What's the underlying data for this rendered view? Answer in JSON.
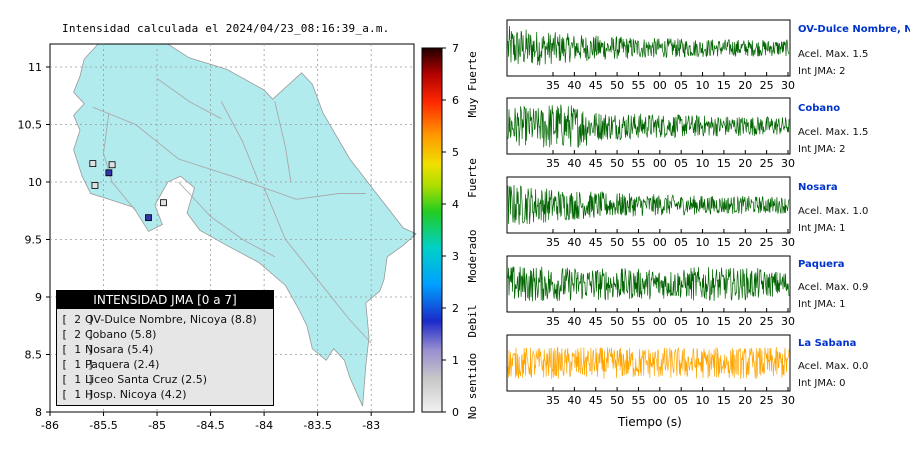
{
  "page_title": "Intensidad calculada el 2024/04/23_08:16:39_a.m.",
  "colors": {
    "land": "#b2ebee",
    "sea": "#ffffff",
    "roads": "#a9a9a9",
    "grid": "#9a9a9a",
    "legend_bg": "#e6e6e6",
    "legend_head": "#000000",
    "normal_wave": "#006400",
    "low_wave": "#ffa500",
    "station_label": "#0033cc"
  },
  "chart_data": [
    {
      "type": "map",
      "xlim": [
        -86,
        -82.6
      ],
      "ylim": [
        8,
        11.2
      ],
      "x_ticks": [
        "-86",
        "-85.5",
        "-85",
        "-84.5",
        "-84",
        "-83.5",
        "-83"
      ],
      "x_tick_values": [
        -86,
        -85.5,
        -85,
        -84.5,
        -84,
        -83.5,
        -83
      ],
      "y_ticks": [
        "8",
        "8.5",
        "9",
        "9.5",
        "10",
        "10.5",
        "11"
      ],
      "y_tick_values": [
        8,
        8.5,
        9,
        9.5,
        10,
        10.5,
        11
      ],
      "grid": true,
      "stations": [
        {
          "name": "OV-Dulce Nombre, Nicoya",
          "lon": -85.45,
          "lat": 10.08,
          "intensity": 2,
          "color": "#3333aa"
        },
        {
          "name": "Cobano",
          "lon": -85.08,
          "lat": 9.69,
          "intensity": 2,
          "color": "#3333aa"
        },
        {
          "name": "Nosara",
          "lon": -85.6,
          "lat": 10.16,
          "intensity": 1,
          "color": "#e0e0e0"
        },
        {
          "name": "Paquera",
          "lon": -84.94,
          "lat": 9.82,
          "intensity": 1,
          "color": "#e0e0e0"
        },
        {
          "name": "Liceo Santa Cruz",
          "lon": -85.58,
          "lat": 9.97,
          "intensity": 1,
          "color": "#e0e0e0"
        },
        {
          "name": "Hosp. Nicoya",
          "lon": -85.42,
          "lat": 10.15,
          "intensity": 1,
          "color": "#e0e0e0"
        }
      ]
    },
    {
      "type": "colorbar",
      "range": [
        0,
        7
      ],
      "ticks": [
        "0",
        "1",
        "2",
        "3",
        "4",
        "5",
        "6",
        "7"
      ],
      "category_labels": [
        "No sentido",
        "Debil",
        "Moderado",
        "Fuerte",
        "Muy Fuerte"
      ]
    },
    {
      "type": "line",
      "xlabel": "Tiempo (s)",
      "x_ticks": [
        "35",
        "40",
        "45",
        "50",
        "55",
        "00",
        "05",
        "10",
        "15",
        "20",
        "25",
        "30"
      ],
      "series": [
        {
          "name": "OV-Dulce Nombre, Nicoya",
          "acel_label": "Acel. Max. 1.5",
          "int_label": "Int JMA: 2",
          "color": "#006400",
          "amp": 0.9,
          "decay": 1.6
        },
        {
          "name": "Cobano",
          "acel_label": "Acel. Max. 1.5",
          "int_label": "Int JMA: 2",
          "color": "#006400",
          "amp": 0.85,
          "decay": 0.9
        },
        {
          "name": "Nosara",
          "acel_label": "Acel. Max. 1.0",
          "int_label": "Int JMA: 1",
          "color": "#006400",
          "amp": 0.9,
          "decay": 1.4
        },
        {
          "name": "Paquera",
          "acel_label": "Acel. Max. 0.9",
          "int_label": "Int JMA: 1",
          "color": "#006400",
          "amp": 0.75,
          "decay": 0.3
        },
        {
          "name": "La Sabana",
          "acel_label": "Acel. Max. 0.0",
          "int_label": "Int JMA: 0",
          "color": "#ffa500",
          "amp": 0.75,
          "decay": 0.0
        }
      ]
    }
  ],
  "legend": {
    "title": "INTENSIDAD JMA [0 a 7]",
    "items": [
      {
        "level": "[ 2 ]",
        "label": "OV-Dulce Nombre, Nicoya (8.8)"
      },
      {
        "level": "[ 2 ]",
        "label": "Cobano (5.8)"
      },
      {
        "level": "[ 1 ]",
        "label": "Nosara (5.4)"
      },
      {
        "level": "[ 1 ]",
        "label": "Paquera (2.4)"
      },
      {
        "level": "[ 1 ]",
        "label": "Liceo Santa Cruz (2.5)"
      },
      {
        "level": "[ 1 ]",
        "label": "Hosp. Nicoya (4.2)"
      }
    ]
  }
}
